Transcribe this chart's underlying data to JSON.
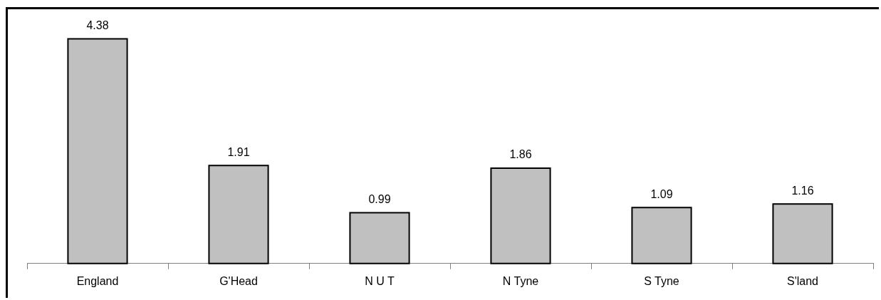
{
  "chart_data": {
    "type": "bar",
    "categories": [
      "England",
      "G'Head",
      "N U T",
      "N Tyne",
      "S Tyne",
      "S'land"
    ],
    "values": [
      4.38,
      1.91,
      0.99,
      1.86,
      1.09,
      1.16
    ],
    "color": "#c0c0c0",
    "data_labels": true,
    "grid": false,
    "legend": false
  }
}
